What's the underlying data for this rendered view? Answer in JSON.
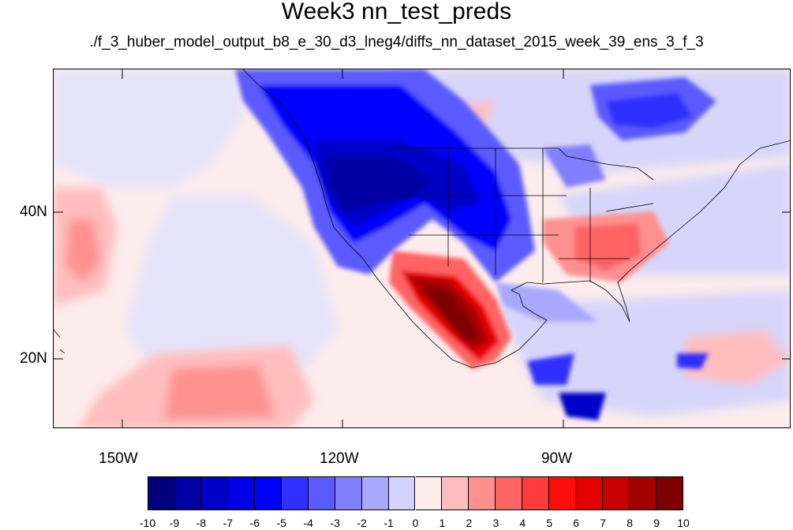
{
  "figure": {
    "title": "Week3 nn_test_preds",
    "subtitle": "./f_3_huber_model_output_b8_e_30_d3_lneg4/diffs_nn_dataset_2015_week_39_ens_3_f_3"
  },
  "map": {
    "projection": "cylindrical-equidistant",
    "lon_range": [
      -159,
      -60
    ],
    "lat_range": [
      10.5,
      59
    ],
    "lat_labels": [
      {
        "text": "40N",
        "lat": 40
      },
      {
        "text": "20N",
        "lat": 20
      }
    ],
    "lon_labels": [
      {
        "text": "150W",
        "lon": -150
      },
      {
        "text": "120W",
        "lon": -120
      },
      {
        "text": "90W",
        "lon": -90
      }
    ],
    "outlines": "continents-and-us-state-borders"
  },
  "colorbar": {
    "labels": [
      "-10",
      "-9",
      "-8",
      "-7",
      "-6",
      "-5",
      "-4",
      "-3",
      "-2",
      "-1",
      "0",
      "1",
      "2",
      "3",
      "4",
      "5",
      "6",
      "7",
      "8",
      "9",
      "10"
    ],
    "colors": [
      "#00007f",
      "#0000a5",
      "#0000c8",
      "#0000e6",
      "#0000ff",
      "#2f2fff",
      "#5a5aff",
      "#7f7fff",
      "#a8a8ff",
      "#d2d2ff",
      "#fdecec",
      "#ffbdbd",
      "#ff9090",
      "#ff6464",
      "#ff3a3a",
      "#ff0c0c",
      "#e50000",
      "#c80000",
      "#a50000",
      "#7f0000"
    ]
  }
}
